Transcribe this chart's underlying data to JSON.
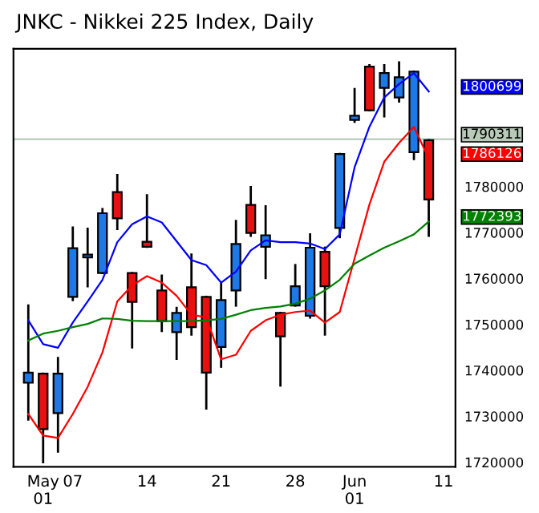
{
  "chart_data": {
    "type": "candlestick",
    "title": "JNKC - Nikkei 225 Index, Daily",
    "categories": [
      null,
      "May\n01",
      null,
      "07",
      null,
      null,
      null,
      null,
      "14",
      null,
      null,
      null,
      null,
      "21",
      null,
      null,
      null,
      null,
      "28",
      null,
      null,
      null,
      "Jun\n01",
      null,
      null,
      null,
      null,
      null,
      "11"
    ],
    "ohlc": [
      [
        1737300,
        1754100,
        1729300,
        1739500
      ],
      [
        1739300,
        1739300,
        1720000,
        1727200
      ],
      [
        1730700,
        1742700,
        1722300,
        1739300
      ],
      [
        1756000,
        1771100,
        1755300,
        1766600
      ],
      [
        1764600,
        1770800,
        1758300,
        1765200
      ],
      [
        1761200,
        1775100,
        1761200,
        1774200
      ],
      [
        1778800,
        1782500,
        1770800,
        1773100
      ],
      [
        1761200,
        1761200,
        1745000,
        1754900
      ],
      [
        1768000,
        1778100,
        1766900,
        1766900
      ],
      [
        1757400,
        1760600,
        1748600,
        1750700
      ],
      [
        1748300,
        1753600,
        1742500,
        1752500
      ],
      [
        1758100,
        1765200,
        1747800,
        1749400
      ],
      [
        1756000,
        1756000,
        1731700,
        1739500
      ],
      [
        1745100,
        1759100,
        1740800,
        1755300
      ],
      [
        1757400,
        1772500,
        1754100,
        1767500
      ],
      [
        1776000,
        1779900,
        1769300,
        1769900
      ],
      [
        1766900,
        1775700,
        1760100,
        1769400
      ],
      [
        1752500,
        1752500,
        1736700,
        1747400
      ],
      [
        1754100,
        1762900,
        1754100,
        1758300
      ],
      [
        1751900,
        1769600,
        1751500,
        1766700
      ],
      [
        1765800,
        1766700,
        1747800,
        1758300
      ],
      [
        1771000,
        1787100,
        1769000,
        1787100
      ],
      [
        1794500,
        1801200,
        1794100,
        1795400
      ],
      [
        1806100,
        1806400,
        1796600,
        1796600
      ],
      [
        1801500,
        1806400,
        1795300,
        1804700
      ],
      [
        1799400,
        1807000,
        1798500,
        1803800
      ],
      [
        1787500,
        1805000,
        1786000,
        1805000
      ],
      [
        1790100,
        1790100,
        1769300,
        1777200
      ],
      null
    ],
    "colors": [
      "#1e78e6",
      "#e81010",
      "#1e78e6",
      "#1e78e6",
      "#1e78e6",
      "#1e78e6",
      "#e81010",
      "#e81010",
      "#e81010",
      "#e81010",
      "#1e78e6",
      "#e81010",
      "#e81010",
      "#1e78e6",
      "#1e78e6",
      "#e81010",
      "#1e78e6",
      "#e81010",
      "#1e78e6",
      "#1e78e6",
      "#e81010",
      "#1e78e6",
      "#1e78e6",
      "#e81010",
      "#1e78e6",
      "#1e78e6",
      "#1e78e6",
      "#e81010",
      null
    ],
    "series": [
      {
        "type": "line",
        "color": "#0000ff",
        "values": [
          1750900,
          1745700,
          1744900,
          1750400,
          1755000,
          1759700,
          1767900,
          1771800,
          1773500,
          1772200,
          1768100,
          1764000,
          1762900,
          1759100,
          1761500,
          1766100,
          1768300,
          1767900,
          1767900,
          1767600,
          1766400,
          1769600,
          1784200,
          1793000,
          1799400,
          1802300,
          1804700,
          1800700,
          null
        ]
      },
      {
        "type": "line",
        "color": "#ff0000",
        "values": [
          1730500,
          1725800,
          1725300,
          1730500,
          1736400,
          1743900,
          1755000,
          1758500,
          1760500,
          1759100,
          1756200,
          1752100,
          1751500,
          1742400,
          1743400,
          1748600,
          1750900,
          1752100,
          1752700,
          1753000,
          1750400,
          1752700,
          1764400,
          1776100,
          1785400,
          1789500,
          1793000,
          1786100,
          null
        ]
      },
      {
        "type": "line",
        "color": "#008000",
        "values": [
          1746500,
          1748000,
          1748600,
          1749400,
          1750100,
          1751300,
          1751200,
          1750800,
          1750700,
          1750700,
          1750700,
          1750700,
          1750900,
          1751200,
          1752100,
          1753100,
          1753600,
          1753900,
          1754500,
          1755600,
          1757400,
          1759700,
          1763200,
          1765000,
          1766700,
          1768100,
          1769600,
          1772400,
          null
        ]
      }
    ],
    "annotations": [
      "1800699",
      "1786126",
      "1772393"
    ],
    "ref_lines": [
      {
        "axis": "y",
        "value": 1790311,
        "label": "1790311",
        "color": "#b8cbb8"
      }
    ],
    "ylim": [
      1719000,
      1810000
    ],
    "yticks": [
      1720000,
      1730000,
      1740000,
      1750000,
      1760000,
      1770000,
      1780000
    ]
  }
}
